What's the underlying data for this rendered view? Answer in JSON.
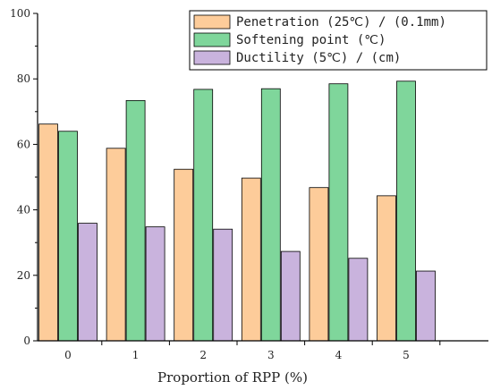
{
  "chart_data": {
    "type": "bar",
    "categories": [
      "0",
      "1",
      "2",
      "3",
      "4",
      "5"
    ],
    "series": [
      {
        "name": "Penetration (25℃) / (0.1mm)",
        "values": [
          66.2,
          58.8,
          52.4,
          49.7,
          46.8,
          44.3
        ],
        "color": "#fdcc9a"
      },
      {
        "name": "Softening point (℃)",
        "values": [
          64.0,
          73.4,
          76.8,
          77.0,
          78.5,
          79.3
        ],
        "color": "#7fd69b"
      },
      {
        "name": "Ductility (5℃) / (cm)",
        "values": [
          35.9,
          34.8,
          34.1,
          27.3,
          25.2,
          21.3
        ],
        "color": "#c9b3dd"
      }
    ],
    "title": "",
    "xlabel": "Proportion of RPP (%)",
    "ylabel": "",
    "ylim": [
      0,
      100
    ],
    "yticks": [
      "0",
      "20",
      "40",
      "60",
      "80",
      "100"
    ],
    "grid": false,
    "legend_position": "top-right"
  }
}
